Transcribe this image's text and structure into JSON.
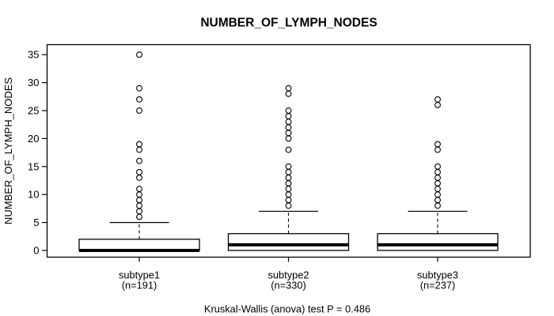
{
  "figure": {
    "title": "NUMBER_OF_LYMPH_NODES",
    "y_axis_label": "NUMBER_OF_LYMPH_NODES",
    "caption": "Kruskal-Wallis (anova) test P = 0.486"
  },
  "chart_data": {
    "type": "boxplot",
    "title": "NUMBER_OF_LYMPH_NODES",
    "ylabel": "NUMBER_OF_LYMPH_NODES",
    "xlabel": "",
    "ylim": [
      -1.3,
      36.8
    ],
    "yticks": [
      0,
      5,
      10,
      15,
      20,
      25,
      30,
      35
    ],
    "grid": false,
    "legend": "none",
    "caption": "Kruskal-Wallis (anova) test P = 0.486",
    "stat_test": {
      "name": "Kruskal-Wallis (anova) test",
      "p_label": "P = 0.486",
      "p_value": 0.486
    },
    "categories": [
      "subtype1",
      "subtype2",
      "subtype3"
    ],
    "groups": [
      {
        "label": "subtype1",
        "n_label": "(n=191)",
        "n": 191,
        "whisker_low": 0,
        "q1": 0,
        "median": 0,
        "q3": 2,
        "whisker_high": 5,
        "outliers": [
          6,
          7,
          8,
          9,
          10,
          11,
          13,
          14,
          16,
          18,
          19,
          25,
          27,
          29,
          35
        ]
      },
      {
        "label": "subtype2",
        "n_label": "(n=330)",
        "n": 330,
        "whisker_low": 0,
        "q1": 0,
        "median": 1,
        "q3": 3,
        "whisker_high": 7,
        "outliers": [
          8,
          9,
          10,
          11,
          12,
          13,
          14,
          15,
          18,
          20,
          21,
          22,
          23,
          24,
          25,
          28,
          29
        ]
      },
      {
        "label": "subtype3",
        "n_label": "(n=237)",
        "n": 237,
        "whisker_low": 0,
        "q1": 0,
        "median": 1,
        "q3": 3,
        "whisker_high": 7,
        "outliers": [
          8,
          9,
          10,
          11,
          12,
          13,
          14,
          15,
          18,
          19,
          26,
          27
        ]
      }
    ],
    "colors": {
      "stroke": "#000000",
      "box_fill": "#ffffff",
      "background": "#ffffff"
    }
  }
}
